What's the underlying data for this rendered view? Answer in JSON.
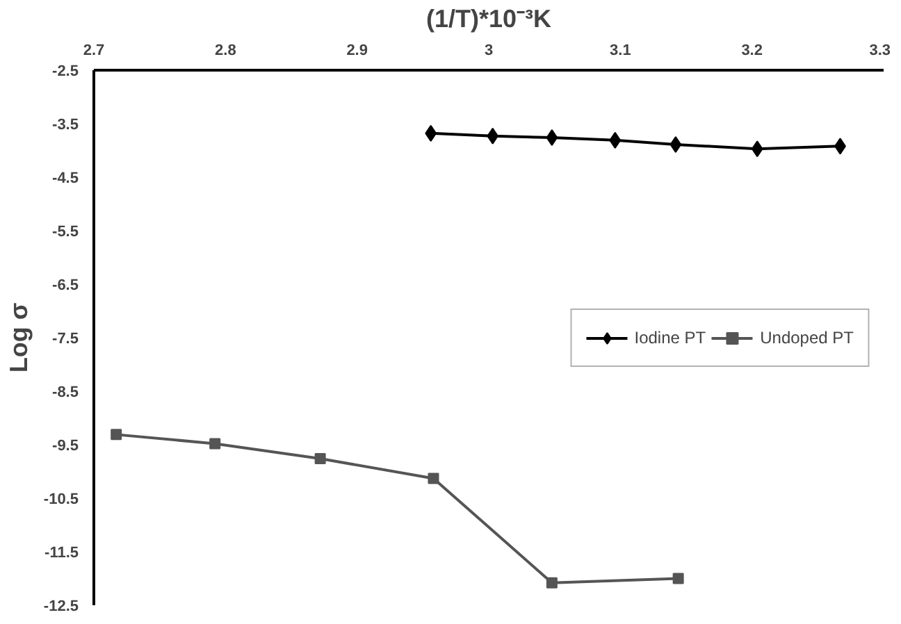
{
  "chart_data": {
    "type": "line",
    "xlabel": "(1/T)*10⁻³K",
    "ylabel": "Log σ",
    "xlim": [
      2.7,
      3.3
    ],
    "xticks": [
      2.7,
      2.8,
      2.9,
      3,
      3.1,
      3.2,
      3.3
    ],
    "ylim": [
      -12.5,
      -2.5
    ],
    "yticks": [
      -2.5,
      -3.5,
      -4.5,
      -5.5,
      -6.5,
      -7.5,
      -8.5,
      -9.5,
      -10.5,
      -11.5,
      -12.5
    ],
    "grid": false,
    "legend": "right",
    "series": [
      {
        "name": "Iodine PT",
        "color": "#000000",
        "marker": "diamond",
        "x": [
          2.956,
          3.003,
          3.048,
          3.096,
          3.142,
          3.204,
          3.267
        ],
        "values": [
          -3.68,
          -3.73,
          -3.76,
          -3.81,
          -3.89,
          -3.97,
          -3.92
        ]
      },
      {
        "name": "Undoped PT",
        "color": "#555555",
        "marker": "square",
        "x": [
          2.717,
          2.792,
          2.872,
          2.958,
          3.048,
          3.144
        ],
        "values": [
          -9.31,
          -9.48,
          -9.76,
          -10.13,
          -12.08,
          -12.0
        ]
      }
    ]
  }
}
